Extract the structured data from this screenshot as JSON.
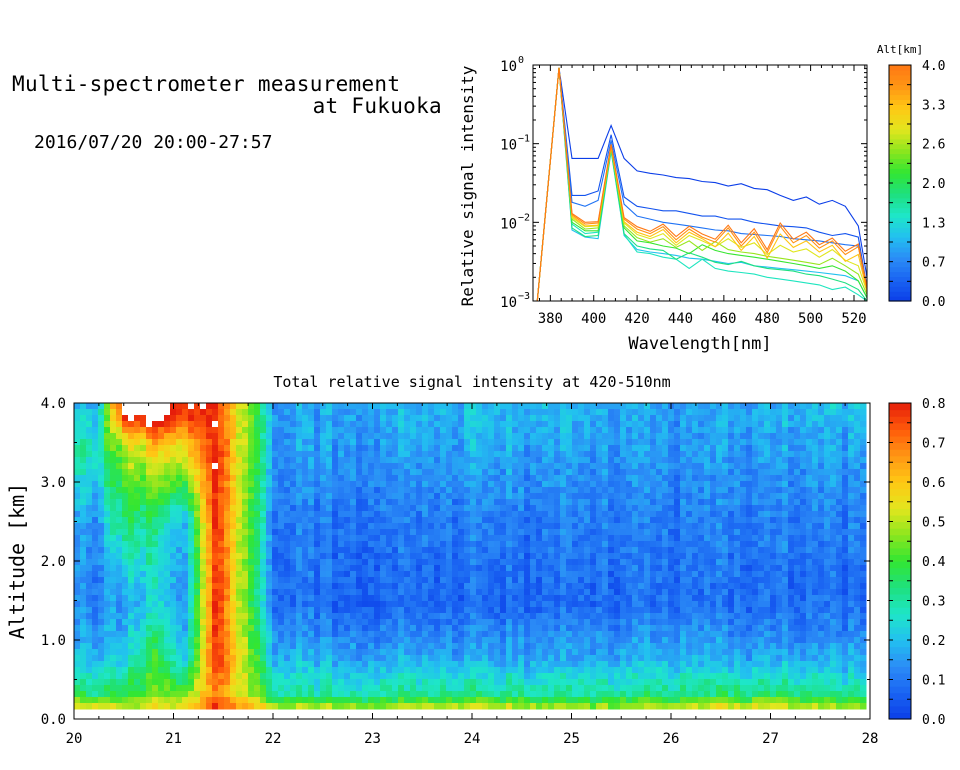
{
  "header": {
    "title_line1": "Multi-spectrometer measurement",
    "title_line2": "at Fukuoka",
    "date_range": "2016/07/20 20:00-27:57"
  },
  "spectrum": {
    "ylabel": "Relative signal intensity",
    "xlabel": "Wavelength[nm]",
    "x_ticks": [
      "380",
      "400",
      "420",
      "440",
      "460",
      "480",
      "500",
      "520"
    ],
    "y_ticks": [
      {
        "base": "10",
        "exp": "0",
        "value": 1
      },
      {
        "base": "10",
        "exp": "−1",
        "value": 0.1
      },
      {
        "base": "10",
        "exp": "−2",
        "value": 0.01
      },
      {
        "base": "10",
        "exp": "−3",
        "value": 0.001
      }
    ],
    "colorbar_title": "Alt[km]",
    "colorbar_ticks": [
      "0.0",
      "0.7",
      "1.3",
      "2.0",
      "2.6",
      "3.3",
      "4.0"
    ]
  },
  "heatmap": {
    "title": "Total relative signal intensity at 420-510nm",
    "ylabel": "Altitude [km]",
    "x_ticks": [
      "20",
      "21",
      "22",
      "23",
      "24",
      "25",
      "26",
      "27",
      "28"
    ],
    "y_ticks": [
      "0.0",
      "1.0",
      "2.0",
      "3.0",
      "4.0"
    ],
    "colorbar_ticks": [
      "0.0",
      "0.1",
      "0.2",
      "0.3",
      "0.4",
      "0.5",
      "0.6",
      "0.7",
      "0.8"
    ]
  },
  "colors": {
    "colorscale": [
      "#0b3ee8",
      "#1a64f2",
      "#2b8cf6",
      "#22c0f0",
      "#1ee6c8",
      "#1ee07e",
      "#32e632",
      "#8ce61e",
      "#e2e61e",
      "#ffc814",
      "#ff9614",
      "#ff5a0a",
      "#e61e0a"
    ],
    "alt_colorscale": [
      "#0b3ee8",
      "#1a64f2",
      "#2b8cf6",
      "#22c0f0",
      "#1ee6c8",
      "#1ee07e",
      "#32e632",
      "#8ce61e",
      "#e2e61e",
      "#ffc814",
      "#ff9614",
      "#ff7814"
    ]
  },
  "chart_data": [
    {
      "type": "line",
      "title": "",
      "xlabel": "Wavelength[nm]",
      "ylabel": "Relative signal intensity",
      "xlim": [
        372,
        526
      ],
      "ylim": [
        0.001,
        1
      ],
      "yscale": "log",
      "x": [
        374,
        384,
        390,
        396,
        402,
        408,
        414,
        420,
        426,
        432,
        438,
        444,
        450,
        456,
        462,
        468,
        474,
        480,
        486,
        492,
        498,
        504,
        510,
        516,
        522,
        526
      ],
      "series": [
        {
          "alt": 0.0,
          "values": [
            0.001,
            0.92,
            0.065,
            0.065,
            0.065,
            0.17,
            0.065,
            0.045,
            0.042,
            0.04,
            0.037,
            0.036,
            0.033,
            0.032,
            0.029,
            0.031,
            0.027,
            0.026,
            0.022,
            0.019,
            0.021,
            0.017,
            0.019,
            0.016,
            0.009,
            0.002
          ]
        },
        {
          "alt": 0.2,
          "values": [
            0.001,
            0.92,
            0.022,
            0.022,
            0.025,
            0.13,
            0.021,
            0.016,
            0.015,
            0.014,
            0.014,
            0.013,
            0.012,
            0.012,
            0.011,
            0.011,
            0.01,
            0.0095,
            0.009,
            0.0088,
            0.0085,
            0.0075,
            0.0068,
            0.0072,
            0.0065,
            0.0015
          ]
        },
        {
          "alt": 0.5,
          "values": [
            0.001,
            0.92,
            0.018,
            0.016,
            0.019,
            0.11,
            0.017,
            0.012,
            0.011,
            0.01,
            0.0095,
            0.009,
            0.0085,
            0.008,
            0.0078,
            0.0072,
            0.007,
            0.0068,
            0.0066,
            0.0062,
            0.006,
            0.0058,
            0.0055,
            0.0052,
            0.005,
            0.0013
          ]
        },
        {
          "alt": 1.1,
          "values": [
            0.001,
            0.92,
            0.008,
            0.0065,
            0.0062,
            0.08,
            0.0068,
            0.0045,
            0.0042,
            0.004,
            0.0038,
            0.0035,
            0.0034,
            0.0032,
            0.003,
            0.0031,
            0.0028,
            0.0027,
            0.0026,
            0.0025,
            0.0024,
            0.0023,
            0.0022,
            0.0021,
            0.0018,
            0.0011
          ]
        },
        {
          "alt": 1.5,
          "values": [
            0.001,
            0.92,
            0.0095,
            0.0072,
            0.0075,
            0.085,
            0.007,
            0.0042,
            0.004,
            0.0036,
            0.0034,
            0.0026,
            0.0034,
            0.0026,
            0.0024,
            0.0023,
            0.0022,
            0.002,
            0.0019,
            0.0018,
            0.0017,
            0.0016,
            0.0014,
            0.0015,
            0.0012,
            0.001
          ]
        },
        {
          "alt": 1.8,
          "values": [
            0.001,
            0.92,
            0.0085,
            0.0066,
            0.0068,
            0.083,
            0.0072,
            0.005,
            0.0046,
            0.0044,
            0.0034,
            0.0041,
            0.0036,
            0.0031,
            0.0029,
            0.0032,
            0.0028,
            0.0026,
            0.0025,
            0.0024,
            0.0022,
            0.0021,
            0.0019,
            0.0017,
            0.0014,
            0.001
          ]
        },
        {
          "alt": 2.2,
          "values": [
            0.001,
            0.92,
            0.01,
            0.0078,
            0.0078,
            0.088,
            0.0085,
            0.0058,
            0.0055,
            0.005,
            0.0047,
            0.004,
            0.0052,
            0.0044,
            0.004,
            0.0038,
            0.0036,
            0.0034,
            0.0032,
            0.003,
            0.0028,
            0.0026,
            0.0028,
            0.0024,
            0.0018,
            0.0011
          ]
        },
        {
          "alt": 2.6,
          "values": [
            0.001,
            0.92,
            0.011,
            0.0082,
            0.0085,
            0.09,
            0.009,
            0.0064,
            0.0056,
            0.0062,
            0.0048,
            0.0058,
            0.0044,
            0.0057,
            0.0045,
            0.0042,
            0.004,
            0.0037,
            0.0035,
            0.0033,
            0.0031,
            0.0029,
            0.0035,
            0.0028,
            0.0022,
            0.0012
          ]
        },
        {
          "alt": 2.9,
          "values": [
            0.001,
            0.92,
            0.0115,
            0.0088,
            0.009,
            0.092,
            0.0098,
            0.007,
            0.0062,
            0.0072,
            0.0051,
            0.0068,
            0.0058,
            0.0049,
            0.0062,
            0.0048,
            0.0055,
            0.0039,
            0.0051,
            0.0042,
            0.0046,
            0.0036,
            0.0045,
            0.0033,
            0.0028,
            0.0013
          ]
        },
        {
          "alt": 3.3,
          "values": [
            0.001,
            0.92,
            0.012,
            0.009,
            0.0092,
            0.094,
            0.0102,
            0.0075,
            0.0066,
            0.0081,
            0.0055,
            0.0075,
            0.0062,
            0.0049,
            0.0073,
            0.0044,
            0.0066,
            0.0035,
            0.0071,
            0.0048,
            0.0058,
            0.0042,
            0.0051,
            0.0032,
            0.0039,
            0.0013
          ]
        },
        {
          "alt": 3.7,
          "values": [
            0.001,
            0.92,
            0.0125,
            0.0095,
            0.0098,
            0.096,
            0.011,
            0.0082,
            0.0072,
            0.0088,
            0.006,
            0.0082,
            0.0065,
            0.0056,
            0.0085,
            0.005,
            0.0075,
            0.0041,
            0.0089,
            0.0055,
            0.0068,
            0.0047,
            0.0058,
            0.0039,
            0.0049,
            0.0014
          ]
        },
        {
          "alt": 4.0,
          "values": [
            0.001,
            0.92,
            0.013,
            0.01,
            0.0102,
            0.098,
            0.0115,
            0.0088,
            0.0077,
            0.0095,
            0.0066,
            0.0089,
            0.0071,
            0.0061,
            0.0092,
            0.0055,
            0.0083,
            0.0045,
            0.0098,
            0.0061,
            0.0075,
            0.0052,
            0.0063,
            0.0043,
            0.0053,
            0.0015
          ]
        }
      ]
    },
    {
      "type": "heatmap",
      "title": "Total relative signal intensity at 420-510nm",
      "xlabel": "",
      "ylabel": "Altitude [km]",
      "xlim": [
        20,
        28
      ],
      "ylim": [
        0,
        4
      ],
      "clim": [
        0,
        0.8
      ],
      "time_range": [
        20.0,
        27.95
      ],
      "x": [
        20.2,
        20.5,
        20.8,
        21.1,
        21.4,
        22.0,
        23.0,
        24.0,
        25.0,
        26.0,
        27.0,
        27.8
      ],
      "y": [
        0.15,
        0.35,
        0.8,
        1.5,
        2.5,
        3.5,
        3.95
      ],
      "z": [
        [
          0.6,
          0.5,
          0.6,
          0.6,
          0.8,
          0.55,
          0.5,
          0.6,
          0.5,
          0.55,
          0.6,
          0.5
        ],
        [
          0.35,
          0.38,
          0.45,
          0.45,
          0.7,
          0.3,
          0.3,
          0.32,
          0.3,
          0.32,
          0.35,
          0.3
        ],
        [
          0.2,
          0.22,
          0.4,
          0.22,
          0.8,
          0.18,
          0.17,
          0.18,
          0.16,
          0.18,
          0.17,
          0.16
        ],
        [
          0.12,
          0.15,
          0.25,
          0.15,
          0.8,
          0.08,
          0.07,
          0.07,
          0.07,
          0.08,
          0.08,
          0.07
        ],
        [
          0.15,
          0.35,
          0.3,
          0.2,
          0.8,
          0.1,
          0.1,
          0.11,
          0.1,
          0.1,
          0.11,
          0.1
        ],
        [
          0.3,
          0.5,
          0.6,
          0.6,
          0.8,
          0.15,
          0.16,
          0.18,
          0.15,
          0.14,
          0.16,
          0.15
        ],
        [
          0.2,
          0.9,
          0.9,
          0.8,
          0.8,
          0.15,
          0.18,
          0.2,
          0.18,
          0.15,
          0.18,
          0.2
        ]
      ]
    }
  ]
}
